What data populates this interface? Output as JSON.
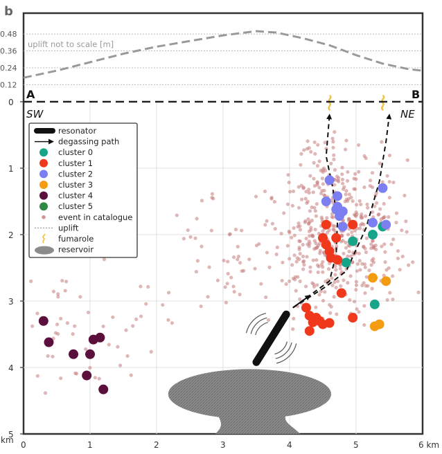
{
  "panel_label": "b",
  "chart_data": {
    "type": "scatter",
    "title": "",
    "xlabel": "km",
    "ylabel": "km",
    "xlim": [
      0,
      6
    ],
    "ylim": [
      5,
      0
    ],
    "x_ticks": [
      "0",
      "1",
      "2",
      "3",
      "4",
      "5",
      "6 km"
    ],
    "y_ticks": [
      "0",
      "1",
      "2",
      "3",
      "4",
      "5"
    ],
    "y_unit_label": "km",
    "uplift": {
      "annotation": "uplift not to scale [m]",
      "ticks": [
        "0.48",
        "0.36",
        "0.24",
        "0.12"
      ],
      "tick_values": [
        0.48,
        0.36,
        0.24,
        0.12
      ],
      "profile": [
        [
          0,
          0.17
        ],
        [
          0.5,
          0.22
        ],
        [
          1.0,
          0.28
        ],
        [
          1.5,
          0.34
        ],
        [
          2.0,
          0.39
        ],
        [
          2.5,
          0.43
        ],
        [
          3.0,
          0.47
        ],
        [
          3.5,
          0.5
        ],
        [
          3.8,
          0.49
        ],
        [
          4.2,
          0.45
        ],
        [
          4.6,
          0.4
        ],
        [
          5.0,
          0.33
        ],
        [
          5.4,
          0.27
        ],
        [
          5.8,
          0.23
        ],
        [
          6.0,
          0.22
        ]
      ]
    },
    "section": {
      "start_label": "A",
      "end_label": "B",
      "left_dir": "SW",
      "right_dir": "NE"
    },
    "legend": {
      "position": "upper-left",
      "entries": [
        {
          "label": "resonator",
          "kind": "resonator"
        },
        {
          "label": "degassing path",
          "kind": "arrow"
        },
        {
          "label": "cluster 0",
          "kind": "dot",
          "color": "#17a589"
        },
        {
          "label": "cluster 1",
          "kind": "dot",
          "color": "#f0381c"
        },
        {
          "label": "cluster 2",
          "kind": "dot",
          "color": "#7b7ff2"
        },
        {
          "label": "cluster 3",
          "kind": "dot",
          "color": "#f39c12"
        },
        {
          "label": "cluster 4",
          "kind": "dot",
          "color": "#5b0f3c"
        },
        {
          "label": "cluster 5",
          "kind": "dot",
          "color": "#2f8a45"
        },
        {
          "label": "event in catalogue",
          "kind": "small-dot",
          "color": "#d49494"
        },
        {
          "label": "uplift",
          "kind": "line"
        },
        {
          "label": "fumarole",
          "kind": "fumarole"
        },
        {
          "label": "reservoir",
          "kind": "ellipse"
        }
      ]
    },
    "colors": {
      "catalogue": "#c77b7b",
      "reservoir": "#888888",
      "resonator": "#111111",
      "fumarole": "#f0c24a",
      "uplift": "#999999"
    },
    "fumaroles": [
      [
        4.6,
        0.12
      ],
      [
        5.4,
        0.12
      ]
    ],
    "degassing_paths": [
      [
        [
          4.05,
          3.1
        ],
        [
          4.35,
          2.88
        ],
        [
          4.6,
          2.7
        ],
        [
          4.7,
          2.3
        ],
        [
          4.72,
          1.8
        ],
        [
          4.65,
          1.3
        ],
        [
          4.55,
          0.82
        ],
        [
          4.6,
          0.2
        ]
      ],
      [
        [
          4.05,
          3.1
        ],
        [
          4.55,
          2.78
        ],
        [
          4.85,
          2.55
        ],
        [
          5.15,
          1.9
        ],
        [
          5.35,
          1.2
        ],
        [
          5.45,
          0.6
        ],
        [
          5.5,
          0.2
        ]
      ]
    ],
    "resonator": {
      "x1": 3.5,
      "y1": 3.92,
      "x2": 3.95,
      "y2": 3.2
    },
    "reservoir": {
      "center_x": 3.4,
      "center_y": 4.4,
      "width_km": 2.45,
      "height_km": 0.75,
      "stem_bottom": 5.0
    },
    "clusters": [
      {
        "name": "cluster 0",
        "color": "#17a589",
        "points": [
          [
            4.85,
            2.42
          ],
          [
            4.95,
            2.1
          ],
          [
            5.25,
            2.0
          ],
          [
            5.28,
            3.05
          ],
          [
            5.4,
            1.88
          ]
        ]
      },
      {
        "name": "cluster 1",
        "color": "#f0381c",
        "points": [
          [
            4.5,
            2.05
          ],
          [
            4.55,
            2.15
          ],
          [
            4.6,
            2.25
          ],
          [
            4.62,
            2.35
          ],
          [
            4.55,
            1.85
          ],
          [
            4.72,
            2.38
          ],
          [
            4.7,
            2.05
          ],
          [
            4.95,
            1.85
          ],
          [
            4.78,
            2.88
          ],
          [
            4.25,
            3.1
          ],
          [
            4.3,
            3.22
          ],
          [
            4.35,
            3.32
          ],
          [
            4.4,
            3.25
          ],
          [
            4.45,
            3.3
          ],
          [
            4.5,
            3.35
          ],
          [
            4.6,
            3.33
          ],
          [
            4.3,
            3.45
          ],
          [
            4.95,
            3.25
          ]
        ]
      },
      {
        "name": "cluster 2",
        "color": "#7b7ff2",
        "points": [
          [
            4.6,
            1.18
          ],
          [
            4.55,
            1.5
          ],
          [
            4.72,
            1.42
          ],
          [
            4.72,
            1.58
          ],
          [
            4.8,
            1.65
          ],
          [
            4.75,
            1.72
          ],
          [
            4.7,
            1.62
          ],
          [
            4.8,
            1.88
          ],
          [
            5.25,
            1.82
          ],
          [
            5.4,
            1.3
          ],
          [
            5.45,
            1.85
          ]
        ]
      },
      {
        "name": "cluster 3",
        "color": "#f39c12",
        "points": [
          [
            5.25,
            2.65
          ],
          [
            5.45,
            2.7
          ],
          [
            5.35,
            3.35
          ],
          [
            5.28,
            3.38
          ]
        ]
      },
      {
        "name": "cluster 4",
        "color": "#5b0f3c",
        "points": [
          [
            0.3,
            3.3
          ],
          [
            0.38,
            3.62
          ],
          [
            0.75,
            3.8
          ],
          [
            1.0,
            3.8
          ],
          [
            1.05,
            3.58
          ],
          [
            1.15,
            3.55
          ],
          [
            0.95,
            4.12
          ],
          [
            1.2,
            4.33
          ]
        ]
      },
      {
        "name": "cluster 5",
        "color": "#2f8a45",
        "points": []
      }
    ]
  }
}
